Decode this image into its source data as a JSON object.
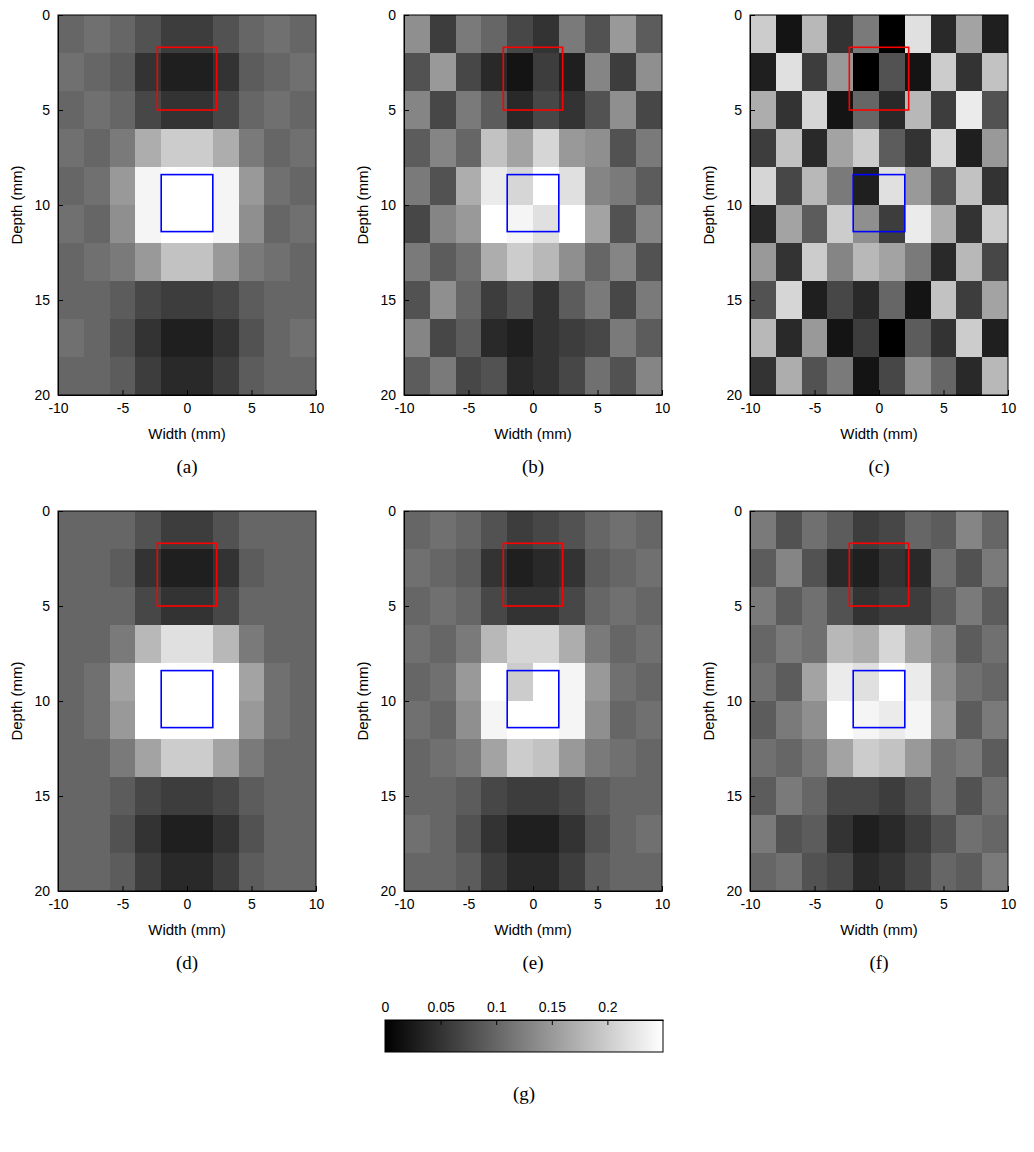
{
  "chart_data": [
    {
      "type": "heatmap",
      "label": "(a)",
      "x_label": "Width (mm)",
      "y_label": "Depth (mm)",
      "xlim": [
        -10,
        10
      ],
      "ylim": [
        0,
        20
      ],
      "xticks": [
        -10,
        -5,
        0,
        5,
        10
      ],
      "yticks": [
        0,
        5,
        10,
        15,
        20
      ],
      "x_edges": [
        -10,
        -8,
        -6,
        -4,
        -2,
        0,
        2,
        4,
        6,
        8,
        10
      ],
      "y_edges": [
        0,
        2,
        4,
        6,
        8,
        10,
        12,
        14,
        16,
        18,
        20
      ],
      "cells": [
        [
          0.1,
          0.11,
          0.1,
          0.08,
          0.06,
          0.06,
          0.08,
          0.1,
          0.11,
          0.1
        ],
        [
          0.11,
          0.1,
          0.09,
          0.05,
          0.03,
          0.03,
          0.05,
          0.09,
          0.1,
          0.11
        ],
        [
          0.1,
          0.11,
          0.1,
          0.07,
          0.05,
          0.05,
          0.07,
          0.1,
          0.11,
          0.1
        ],
        [
          0.11,
          0.1,
          0.12,
          0.17,
          0.2,
          0.2,
          0.17,
          0.12,
          0.1,
          0.11
        ],
        [
          0.1,
          0.11,
          0.15,
          0.24,
          0.25,
          0.25,
          0.24,
          0.15,
          0.11,
          0.1
        ],
        [
          0.11,
          0.1,
          0.14,
          0.24,
          0.25,
          0.25,
          0.24,
          0.14,
          0.1,
          0.11
        ],
        [
          0.1,
          0.11,
          0.12,
          0.15,
          0.19,
          0.19,
          0.15,
          0.12,
          0.11,
          0.1
        ],
        [
          0.1,
          0.1,
          0.09,
          0.07,
          0.06,
          0.06,
          0.07,
          0.09,
          0.1,
          0.1
        ],
        [
          0.11,
          0.1,
          0.08,
          0.05,
          0.03,
          0.03,
          0.05,
          0.08,
          0.1,
          0.11
        ],
        [
          0.1,
          0.1,
          0.09,
          0.06,
          0.04,
          0.04,
          0.06,
          0.09,
          0.1,
          0.1
        ]
      ],
      "boxes": [
        {
          "x0": -2.3,
          "x1": 2.3,
          "y0": 1.7,
          "y1": 5,
          "color": "#ff0000"
        },
        {
          "x0": -2,
          "x1": 2,
          "y0": 8.4,
          "y1": 11.4,
          "color": "#0000ff"
        }
      ]
    },
    {
      "type": "heatmap",
      "label": "(b)",
      "x_label": "Width (mm)",
      "y_label": "Depth (mm)",
      "xlim": [
        -10,
        10
      ],
      "ylim": [
        0,
        20
      ],
      "xticks": [
        -10,
        -5,
        0,
        5,
        10
      ],
      "yticks": [
        0,
        5,
        10,
        15,
        20
      ],
      "x_edges": [
        -10,
        -8,
        -6,
        -4,
        -2,
        0,
        2,
        4,
        6,
        8,
        10
      ],
      "y_edges": [
        0,
        2,
        4,
        6,
        8,
        10,
        12,
        14,
        16,
        18,
        20
      ],
      "cells": [
        [
          0.14,
          0.06,
          0.12,
          0.1,
          0.07,
          0.05,
          0.12,
          0.08,
          0.15,
          0.09
        ],
        [
          0.08,
          0.15,
          0.07,
          0.04,
          0.02,
          0.06,
          0.03,
          0.13,
          0.06,
          0.14
        ],
        [
          0.13,
          0.07,
          0.12,
          0.09,
          0.04,
          0.07,
          0.05,
          0.08,
          0.14,
          0.07
        ],
        [
          0.09,
          0.13,
          0.1,
          0.19,
          0.16,
          0.21,
          0.15,
          0.14,
          0.08,
          0.12
        ],
        [
          0.12,
          0.08,
          0.17,
          0.23,
          0.21,
          0.25,
          0.22,
          0.13,
          0.12,
          0.09
        ],
        [
          0.07,
          0.13,
          0.15,
          0.25,
          0.24,
          0.22,
          0.25,
          0.16,
          0.08,
          0.13
        ],
        [
          0.12,
          0.09,
          0.11,
          0.17,
          0.2,
          0.18,
          0.14,
          0.1,
          0.13,
          0.08
        ],
        [
          0.08,
          0.14,
          0.1,
          0.06,
          0.08,
          0.05,
          0.09,
          0.12,
          0.07,
          0.12
        ],
        [
          0.13,
          0.07,
          0.09,
          0.04,
          0.03,
          0.05,
          0.06,
          0.07,
          0.12,
          0.09
        ],
        [
          0.09,
          0.12,
          0.07,
          0.08,
          0.04,
          0.05,
          0.07,
          0.11,
          0.08,
          0.13
        ]
      ],
      "boxes": [
        {
          "x0": -2.3,
          "x1": 2.3,
          "y0": 1.7,
          "y1": 5,
          "color": "#ff0000"
        },
        {
          "x0": -2,
          "x1": 2,
          "y0": 8.4,
          "y1": 11.4,
          "color": "#0000ff"
        }
      ]
    },
    {
      "type": "heatmap",
      "label": "(c)",
      "x_label": "Width (mm)",
      "y_label": "Depth (mm)",
      "xlim": [
        -10,
        10
      ],
      "ylim": [
        0,
        20
      ],
      "xticks": [
        -10,
        -5,
        0,
        5,
        10
      ],
      "yticks": [
        0,
        5,
        10,
        15,
        20
      ],
      "x_edges": [
        -10,
        -8,
        -6,
        -4,
        -2,
        0,
        2,
        4,
        6,
        8,
        10
      ],
      "y_edges": [
        0,
        2,
        4,
        6,
        8,
        10,
        12,
        14,
        16,
        18,
        20
      ],
      "cells": [
        [
          0.2,
          0.02,
          0.18,
          0.05,
          0.12,
          0,
          0.22,
          0.04,
          0.16,
          0.03
        ],
        [
          0.03,
          0.22,
          0.06,
          0.15,
          0,
          0.08,
          0.02,
          0.2,
          0.05,
          0.19
        ],
        [
          0.17,
          0.05,
          0.21,
          0.02,
          0.1,
          0.04,
          0.18,
          0.06,
          0.23,
          0.08
        ],
        [
          0.06,
          0.19,
          0.04,
          0.16,
          0.2,
          0.09,
          0.05,
          0.21,
          0.03,
          0.15
        ],
        [
          0.21,
          0.07,
          0.18,
          0.12,
          0.03,
          0.22,
          0.15,
          0.08,
          0.19,
          0.05
        ],
        [
          0.04,
          0.16,
          0.09,
          0.2,
          0.14,
          0.06,
          0.23,
          0.17,
          0.05,
          0.2
        ],
        [
          0.15,
          0.05,
          0.2,
          0.13,
          0.18,
          0.16,
          0.12,
          0.04,
          0.18,
          0.07
        ],
        [
          0.08,
          0.21,
          0.03,
          0.07,
          0.04,
          0.1,
          0.02,
          0.19,
          0.06,
          0.16
        ],
        [
          0.18,
          0.04,
          0.15,
          0.02,
          0.06,
          0,
          0.09,
          0.05,
          0.2,
          0.03
        ],
        [
          0.05,
          0.17,
          0.08,
          0.12,
          0.02,
          0.07,
          0.14,
          0.1,
          0.04,
          0.18
        ]
      ],
      "boxes": [
        {
          "x0": -2.3,
          "x1": 2.3,
          "y0": 1.7,
          "y1": 5,
          "color": "#ff0000"
        },
        {
          "x0": -2,
          "x1": 2,
          "y0": 8.4,
          "y1": 11.4,
          "color": "#0000ff"
        }
      ]
    },
    {
      "type": "heatmap",
      "label": "(d)",
      "x_label": "Width (mm)",
      "y_label": "Depth (mm)",
      "xlim": [
        -10,
        10
      ],
      "ylim": [
        0,
        20
      ],
      "xticks": [
        -10,
        -5,
        0,
        5,
        10
      ],
      "yticks": [
        0,
        5,
        10,
        15,
        20
      ],
      "x_edges": [
        -10,
        -8,
        -6,
        -4,
        -2,
        0,
        2,
        4,
        6,
        8,
        10
      ],
      "y_edges": [
        0,
        2,
        4,
        6,
        8,
        10,
        12,
        14,
        16,
        18,
        20
      ],
      "cells": [
        [
          0.1,
          0.1,
          0.1,
          0.08,
          0.06,
          0.06,
          0.08,
          0.1,
          0.1,
          0.1
        ],
        [
          0.1,
          0.1,
          0.09,
          0.05,
          0.03,
          0.03,
          0.05,
          0.09,
          0.1,
          0.1
        ],
        [
          0.1,
          0.1,
          0.1,
          0.07,
          0.05,
          0.05,
          0.07,
          0.1,
          0.1,
          0.1
        ],
        [
          0.1,
          0.1,
          0.12,
          0.18,
          0.22,
          0.22,
          0.18,
          0.12,
          0.1,
          0.1
        ],
        [
          0.1,
          0.11,
          0.16,
          0.25,
          0.25,
          0.25,
          0.25,
          0.16,
          0.11,
          0.1
        ],
        [
          0.1,
          0.11,
          0.15,
          0.25,
          0.25,
          0.25,
          0.25,
          0.15,
          0.11,
          0.1
        ],
        [
          0.1,
          0.1,
          0.12,
          0.16,
          0.2,
          0.2,
          0.16,
          0.12,
          0.1,
          0.1
        ],
        [
          0.1,
          0.1,
          0.09,
          0.07,
          0.06,
          0.06,
          0.07,
          0.09,
          0.1,
          0.1
        ],
        [
          0.1,
          0.1,
          0.08,
          0.05,
          0.03,
          0.03,
          0.05,
          0.08,
          0.1,
          0.1
        ],
        [
          0.1,
          0.1,
          0.09,
          0.06,
          0.04,
          0.04,
          0.06,
          0.09,
          0.1,
          0.1
        ]
      ],
      "boxes": [
        {
          "x0": -2.3,
          "x1": 2.3,
          "y0": 1.7,
          "y1": 5,
          "color": "#ff0000"
        },
        {
          "x0": -2,
          "x1": 2,
          "y0": 8.4,
          "y1": 11.4,
          "color": "#0000ff"
        }
      ]
    },
    {
      "type": "heatmap",
      "label": "(e)",
      "x_label": "Width (mm)",
      "y_label": "Depth (mm)",
      "xlim": [
        -10,
        10
      ],
      "ylim": [
        0,
        20
      ],
      "xticks": [
        -10,
        -5,
        0,
        5,
        10
      ],
      "yticks": [
        0,
        5,
        10,
        15,
        20
      ],
      "x_edges": [
        -10,
        -8,
        -6,
        -4,
        -2,
        0,
        2,
        4,
        6,
        8,
        10
      ],
      "y_edges": [
        0,
        2,
        4,
        6,
        8,
        10,
        12,
        14,
        16,
        18,
        20
      ],
      "cells": [
        [
          0.1,
          0.11,
          0.1,
          0.08,
          0.06,
          0.07,
          0.08,
          0.1,
          0.11,
          0.1
        ],
        [
          0.11,
          0.1,
          0.09,
          0.05,
          0.03,
          0.04,
          0.05,
          0.09,
          0.1,
          0.11
        ],
        [
          0.1,
          0.11,
          0.1,
          0.07,
          0.05,
          0.05,
          0.07,
          0.1,
          0.11,
          0.1
        ],
        [
          0.11,
          0.1,
          0.12,
          0.18,
          0.21,
          0.21,
          0.17,
          0.12,
          0.1,
          0.11
        ],
        [
          0.1,
          0.11,
          0.15,
          0.25,
          0.2,
          0.25,
          0.24,
          0.15,
          0.11,
          0.1
        ],
        [
          0.11,
          0.1,
          0.14,
          0.24,
          0.25,
          0.25,
          0.24,
          0.14,
          0.1,
          0.11
        ],
        [
          0.1,
          0.11,
          0.12,
          0.16,
          0.2,
          0.19,
          0.15,
          0.12,
          0.11,
          0.1
        ],
        [
          0.1,
          0.1,
          0.09,
          0.07,
          0.06,
          0.06,
          0.07,
          0.09,
          0.1,
          0.1
        ],
        [
          0.11,
          0.1,
          0.08,
          0.05,
          0.03,
          0.03,
          0.05,
          0.08,
          0.1,
          0.11
        ],
        [
          0.1,
          0.1,
          0.09,
          0.06,
          0.04,
          0.04,
          0.06,
          0.09,
          0.1,
          0.1
        ]
      ],
      "boxes": [
        {
          "x0": -2.3,
          "x1": 2.3,
          "y0": 1.7,
          "y1": 5,
          "color": "#ff0000"
        },
        {
          "x0": -2,
          "x1": 2,
          "y0": 8.4,
          "y1": 11.4,
          "color": "#0000ff"
        }
      ]
    },
    {
      "type": "heatmap",
      "label": "(f)",
      "x_label": "Width (mm)",
      "y_label": "Depth (mm)",
      "xlim": [
        -10,
        10
      ],
      "ylim": [
        0,
        20
      ],
      "xticks": [
        -10,
        -5,
        0,
        5,
        10
      ],
      "yticks": [
        0,
        5,
        10,
        15,
        20
      ],
      "x_edges": [
        -10,
        -8,
        -6,
        -4,
        -2,
        0,
        2,
        4,
        6,
        8,
        10
      ],
      "y_edges": [
        0,
        2,
        4,
        6,
        8,
        10,
        12,
        14,
        16,
        18,
        20
      ],
      "cells": [
        [
          0.12,
          0.08,
          0.11,
          0.09,
          0.06,
          0.07,
          0.1,
          0.09,
          0.13,
          0.1
        ],
        [
          0.09,
          0.13,
          0.08,
          0.04,
          0.03,
          0.05,
          0.04,
          0.11,
          0.08,
          0.12
        ],
        [
          0.12,
          0.09,
          0.11,
          0.08,
          0.05,
          0.06,
          0.06,
          0.09,
          0.12,
          0.09
        ],
        [
          0.1,
          0.12,
          0.11,
          0.18,
          0.17,
          0.21,
          0.16,
          0.13,
          0.09,
          0.11
        ],
        [
          0.11,
          0.09,
          0.16,
          0.23,
          0.22,
          0.25,
          0.23,
          0.14,
          0.11,
          0.1
        ],
        [
          0.09,
          0.12,
          0.14,
          0.25,
          0.24,
          0.23,
          0.24,
          0.15,
          0.09,
          0.12
        ],
        [
          0.11,
          0.1,
          0.12,
          0.16,
          0.2,
          0.19,
          0.15,
          0.11,
          0.12,
          0.09
        ],
        [
          0.09,
          0.12,
          0.1,
          0.07,
          0.07,
          0.06,
          0.08,
          0.11,
          0.08,
          0.11
        ],
        [
          0.12,
          0.08,
          0.09,
          0.05,
          0.03,
          0.04,
          0.06,
          0.08,
          0.11,
          0.1
        ],
        [
          0.1,
          0.11,
          0.08,
          0.07,
          0.04,
          0.05,
          0.07,
          0.1,
          0.09,
          0.12
        ]
      ],
      "boxes": [
        {
          "x0": -2.3,
          "x1": 2.3,
          "y0": 1.7,
          "y1": 5,
          "color": "#ff0000"
        },
        {
          "x0": -2,
          "x1": 2,
          "y0": 8.4,
          "y1": 11.4,
          "color": "#0000ff"
        }
      ]
    }
  ],
  "colorbar": {
    "label": "(g)",
    "range": [
      0,
      0.25
    ],
    "ticks": [
      0,
      0.05,
      0.1,
      0.15,
      0.2
    ]
  }
}
